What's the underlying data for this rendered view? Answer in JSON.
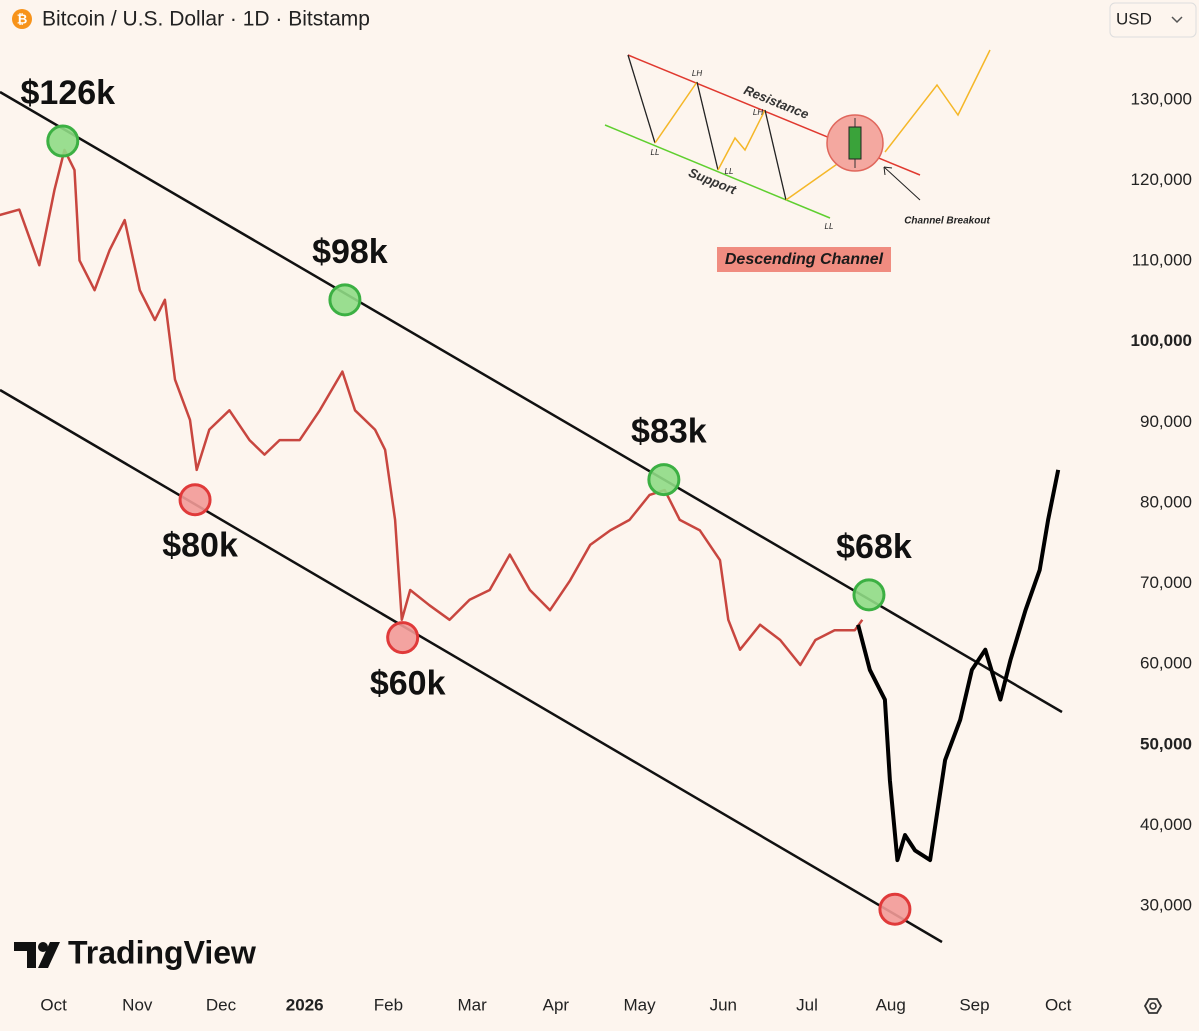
{
  "chart_data": {
    "type": "line",
    "title": "Bitcoin / U.S. Dollar · 1D · Bitstamp",
    "currency": "USD",
    "watermark": "TradingView",
    "xlim": [
      -0.64,
      12.44
    ],
    "xticks": [
      {
        "value": 0,
        "label": "Oct"
      },
      {
        "value": 1,
        "label": "Nov"
      },
      {
        "value": 2,
        "label": "Dec"
      },
      {
        "value": 3,
        "label": "2026"
      },
      {
        "value": 4,
        "label": "Feb"
      },
      {
        "value": 5,
        "label": "Mar"
      },
      {
        "value": 6,
        "label": "Apr"
      },
      {
        "value": 7,
        "label": "May"
      },
      {
        "value": 8,
        "label": "Jun"
      },
      {
        "value": 9,
        "label": "Jul"
      },
      {
        "value": 10,
        "label": "Aug"
      },
      {
        "value": 11,
        "label": "Sep"
      },
      {
        "value": 12,
        "label": "Oct"
      }
    ],
    "ylim": [
      20000,
      142400
    ],
    "yticks": [
      {
        "value": 30000,
        "label": "30,000"
      },
      {
        "value": 40000,
        "label": "40,000"
      },
      {
        "value": 50000,
        "label": "50,000"
      },
      {
        "value": 60000,
        "label": "60,000"
      },
      {
        "value": 70000,
        "label": "70,000"
      },
      {
        "value": 80000,
        "label": "80,000"
      },
      {
        "value": 90000,
        "label": "90,000"
      },
      {
        "value": 100000,
        "label": "100,000"
      },
      {
        "value": 110000,
        "label": "110,000"
      },
      {
        "value": 120000,
        "label": "120,000"
      },
      {
        "value": 130000,
        "label": "130,000"
      }
    ],
    "grid": false,
    "series": [
      {
        "color": "#c8463f",
        "x": [
          -0.65,
          -0.41,
          -0.17,
          0.01,
          0.13,
          0.25,
          0.31,
          0.49,
          0.67,
          0.85,
          1.03,
          1.21,
          1.33,
          1.45,
          1.63,
          1.71,
          1.86,
          2.1,
          2.34,
          2.52,
          2.7,
          2.94,
          3.18,
          3.45,
          3.6,
          3.84,
          3.96,
          4.08,
          4.16,
          4.26,
          4.49,
          4.73,
          4.97,
          5.21,
          5.45,
          5.69,
          5.93,
          6.17,
          6.41,
          6.65,
          6.88,
          7.12,
          7.3,
          7.48,
          7.72,
          7.96,
          8.06,
          8.2,
          8.44,
          8.68,
          8.92,
          9.1,
          9.33,
          9.57,
          9.66
        ],
        "values": [
          115700,
          116400,
          109500,
          118800,
          123800,
          121300,
          110100,
          106400,
          111400,
          115100,
          106400,
          102700,
          105200,
          95300,
          90300,
          84100,
          89100,
          91500,
          87800,
          86000,
          87800,
          87800,
          91500,
          96300,
          91500,
          89100,
          86600,
          77900,
          65500,
          69200,
          67300,
          65500,
          68000,
          69200,
          73600,
          69200,
          66700,
          70400,
          74800,
          76600,
          77900,
          81000,
          81600,
          77900,
          76600,
          72900,
          65500,
          61800,
          64900,
          63000,
          59900,
          63000,
          64200,
          64200,
          65500
        ]
      },
      {
        "color": "#000000",
        "x": [
          9.61,
          9.75,
          9.93,
          9.99,
          10.08,
          10.17,
          10.29,
          10.47,
          10.65,
          10.83,
          10.97,
          11.13,
          11.31,
          11.43,
          11.61,
          11.78,
          11.88,
          12.0
        ],
        "values": [
          64900,
          59300,
          55600,
          45600,
          35700,
          38800,
          36900,
          35700,
          48100,
          53100,
          59300,
          61800,
          55600,
          60500,
          66700,
          71700,
          77900,
          84100
        ]
      }
    ],
    "annotations": [
      {
        "text": "$126k",
        "x": 0.11,
        "y": 124900,
        "color": "#3cb043",
        "side": "above"
      },
      {
        "text": "$98k",
        "x": 3.48,
        "y": 105200,
        "color": "#3cb043",
        "side": "above"
      },
      {
        "text": "$83k",
        "x": 7.29,
        "y": 82900,
        "color": "#3cb043",
        "side": "above"
      },
      {
        "text": "$68k",
        "x": 9.74,
        "y": 68600,
        "color": "#3cb043",
        "side": "above"
      },
      {
        "text": "$80k",
        "x": 1.69,
        "y": 80400,
        "color": "#e03a3a",
        "side": "below"
      },
      {
        "text": "$60k",
        "x": 4.17,
        "y": 63300,
        "color": "#e03a3a",
        "side": "below"
      },
      {
        "x": 10.05,
        "y": 29600,
        "color": "#e03a3a"
      }
    ],
    "inset": {
      "title": "Descending Channel",
      "resistance": "Resistance",
      "support": "Support",
      "breakout": "Channel Breakout",
      "labels": [
        "LH",
        "LH",
        "LL",
        "LL",
        "LL"
      ]
    }
  }
}
